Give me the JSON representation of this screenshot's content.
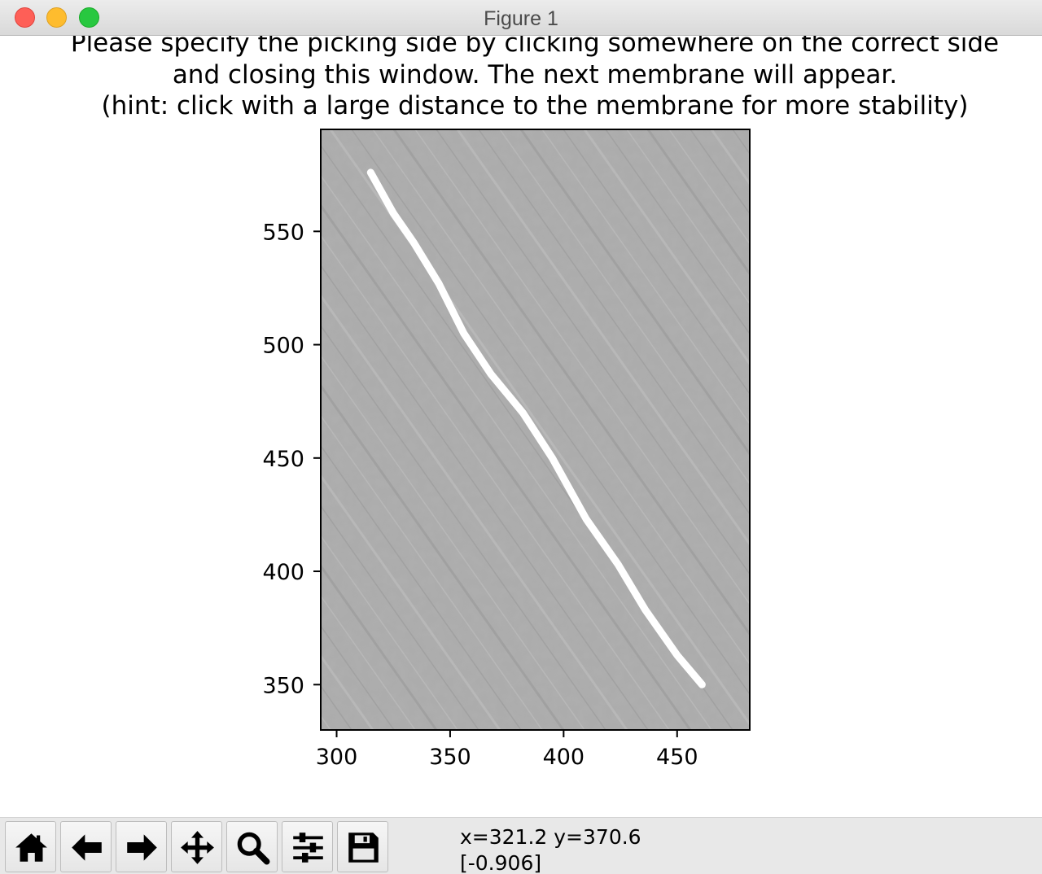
{
  "window": {
    "title": "Figure 1"
  },
  "figure": {
    "title_lines": [
      "Please specify the picking side by clicking somewhere on the correct side",
      "and closing this window. The next membrane will appear.",
      "(hint: click with a large distance to the membrane for more stability)"
    ]
  },
  "chart_data": {
    "type": "image",
    "title": "Please specify the picking side by clicking somewhere on the correct side\nand closing this window. The next membrane will appear.\n(hint: click with a large distance to the membrane for more stability)",
    "xlabel": "",
    "ylabel": "",
    "xlim": [
      293,
      482
    ],
    "ylim": [
      330,
      595
    ],
    "x_ticks": [
      300,
      350,
      400,
      450
    ],
    "y_ticks": [
      350,
      400,
      450,
      500,
      550
    ],
    "x_tick_labels": [
      "300",
      "350",
      "400",
      "450"
    ],
    "y_tick_labels": [
      "350",
      "400",
      "450",
      "500",
      "550"
    ],
    "background": "grayscale tomogram slice with diagonal streaks",
    "membrane_line": {
      "color": "#ffffff",
      "points": [
        [
          315,
          576
        ],
        [
          325,
          558
        ],
        [
          334,
          545
        ],
        [
          345,
          527
        ],
        [
          356,
          505
        ],
        [
          368,
          487
        ],
        [
          382,
          470
        ],
        [
          395,
          450
        ],
        [
          410,
          423
        ],
        [
          424,
          403
        ],
        [
          436,
          383
        ],
        [
          450,
          363
        ],
        [
          461,
          350
        ]
      ]
    },
    "grid": false,
    "legend": "none"
  },
  "toolbar": {
    "buttons": [
      {
        "name": "home-button",
        "icon": "home-icon"
      },
      {
        "name": "back-button",
        "icon": "arrow-left-icon"
      },
      {
        "name": "forward-button",
        "icon": "arrow-right-icon"
      },
      {
        "name": "pan-button",
        "icon": "move-icon"
      },
      {
        "name": "zoom-button",
        "icon": "magnifier-icon"
      },
      {
        "name": "configure-subplots-button",
        "icon": "sliders-icon"
      },
      {
        "name": "save-button",
        "icon": "floppy-disk-icon"
      }
    ],
    "status_coords": "x=321.2 y=370.6",
    "status_value": "[-0.906]"
  },
  "colors": {
    "close": "#fe5f57",
    "minimize": "#febc2e",
    "zoom": "#28c840",
    "image_gray": "#ababab"
  }
}
